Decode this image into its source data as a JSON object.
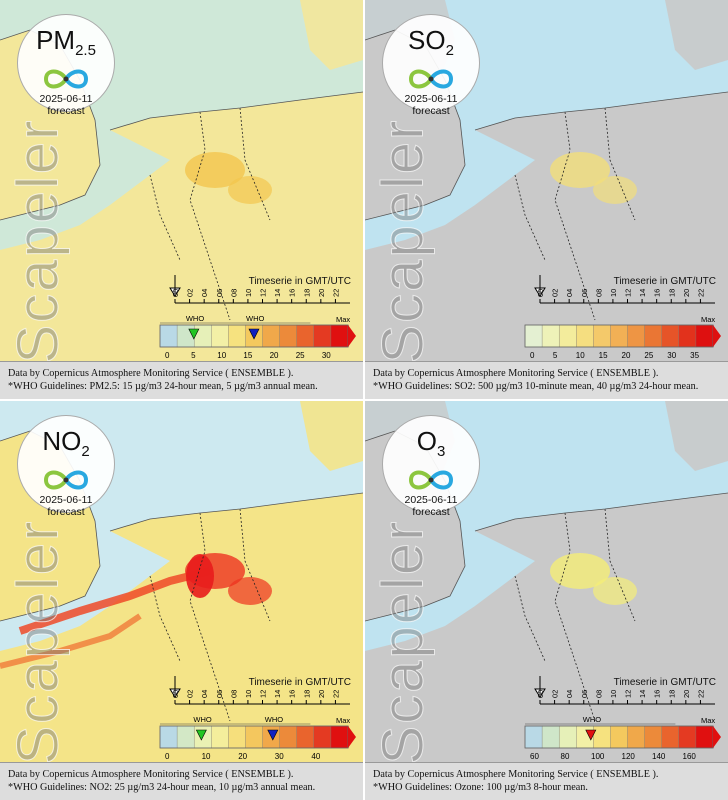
{
  "panels": [
    {
      "id": "pm25",
      "pollutant_main": "PM",
      "pollutant_sub": "2.5",
      "date": "2025-06-11",
      "forecast_label": "forecast",
      "watermark": "Scapeler",
      "timeserie_label": "Timeserie in GMT/UTC",
      "hours": [
        "00",
        "02",
        "04",
        "06",
        "08",
        "10",
        "12",
        "14",
        "16",
        "18",
        "20",
        "22"
      ],
      "max_label": "Max",
      "who_labels": [
        "WHO",
        "WHO"
      ],
      "scale_ticks": [
        "0",
        "5",
        "10",
        "15",
        "20",
        "25",
        "30"
      ],
      "footer_line1": "Data by Copernicus Atmosphere Monitoring Service ( ENSEMBLE ).",
      "footer_line2": "*WHO Guidelines: PM2.5: 15 µg/m3 24-hour mean, 5 µg/m3 annual mean.",
      "colors": [
        "#b9d9e6",
        "#cfe6c9",
        "#e6f0b8",
        "#f3f0a6",
        "#f6e27f",
        "#f4c95e",
        "#f0a84a",
        "#ec8a3a",
        "#e9642d",
        "#e43a22",
        "#e01010"
      ]
    },
    {
      "id": "so2",
      "pollutant_main": "SO",
      "pollutant_sub": "2",
      "date": "2025-06-11",
      "forecast_label": "forecast",
      "watermark": "Scapeler",
      "timeserie_label": "Timeserie in GMT/UTC",
      "hours": [
        "00",
        "02",
        "04",
        "06",
        "08",
        "10",
        "12",
        "14",
        "16",
        "18",
        "20",
        "22"
      ],
      "max_label": "Max",
      "who_labels": [],
      "scale_ticks": [
        "0",
        "5",
        "10",
        "15",
        "20",
        "25",
        "30",
        "35"
      ],
      "footer_line1": "Data by Copernicus Atmosphere Monitoring Service ( ENSEMBLE ).",
      "footer_line2": "*WHO Guidelines: SO2: 500 µg/m3 10-minute mean, 40 µg/m3 24-hour mean.",
      "colors": [
        "#e4f0d2",
        "#eef2b8",
        "#f3ec9c",
        "#f5de80",
        "#f4c96a",
        "#f2b055",
        "#ee9544",
        "#ea7634",
        "#e65428",
        "#e2321c",
        "#de1010"
      ]
    },
    {
      "id": "no2",
      "pollutant_main": "NO",
      "pollutant_sub": "2",
      "date": "2025-06-11",
      "forecast_label": "forecast",
      "watermark": "Scapeler",
      "timeserie_label": "Timeserie in GMT/UTC",
      "hours": [
        "00",
        "02",
        "04",
        "06",
        "08",
        "10",
        "12",
        "14",
        "16",
        "18",
        "20",
        "22"
      ],
      "max_label": "Max",
      "who_labels": [
        "WHO",
        "WHO"
      ],
      "scale_ticks": [
        "0",
        "10",
        "20",
        "30",
        "40"
      ],
      "footer_line1": "Data by Copernicus Atmosphere Monitoring Service ( ENSEMBLE ).",
      "footer_line2": "*WHO Guidelines: NO2: 25 µg/m3 24-hour mean, 10 µg/m3 annual mean.",
      "colors": [
        "#b9d9e6",
        "#d3e8c6",
        "#eaf1b4",
        "#f4ee9c",
        "#f6df7c",
        "#f4c75e",
        "#f1a84a",
        "#ec8a3a",
        "#e9642d",
        "#e43a22",
        "#e01010"
      ]
    },
    {
      "id": "o3",
      "pollutant_main": "O",
      "pollutant_sub": "3",
      "date": "2025-06-11",
      "forecast_label": "forecast",
      "watermark": "Scapeler",
      "timeserie_label": "Timeserie in GMT/UTC",
      "hours": [
        "00",
        "02",
        "04",
        "06",
        "08",
        "10",
        "12",
        "14",
        "16",
        "18",
        "20",
        "22"
      ],
      "max_label": "Max",
      "who_labels": [
        "WHO"
      ],
      "scale_ticks": [
        "60",
        "80",
        "100",
        "120",
        "140",
        "160"
      ],
      "footer_line1": "Data by Copernicus Atmosphere Monitoring Service ( ENSEMBLE ).",
      "footer_line2": "*WHO Guidelines: Ozone: 100 µg/m3 8-hour mean.",
      "colors": [
        "#b9d9e6",
        "#cfe6c9",
        "#e6f0b8",
        "#f3f0a6",
        "#f6e27f",
        "#f4c95e",
        "#f0a84a",
        "#ec8a3a",
        "#e9642d",
        "#e43a22",
        "#e01010"
      ]
    }
  ]
}
